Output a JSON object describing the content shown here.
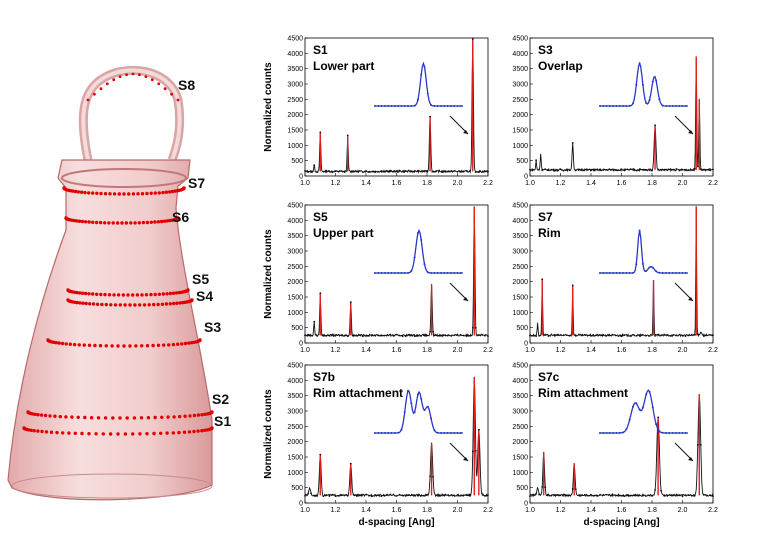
{
  "vessel": {
    "labels": [
      "S8",
      "S7",
      "S6",
      "S5",
      "S4",
      "S3",
      "S2",
      "S1"
    ],
    "colors": {
      "body": "#f2c9c9",
      "edge": "#b85a5a",
      "marker": "#e00000"
    }
  },
  "axes": {
    "ylabel": "Normalized counts",
    "xlabel": "d-spacing [Ang]"
  },
  "chart_data": [
    {
      "type": "line",
      "panel": "S1",
      "title": "S1",
      "subtitle": "Lower part",
      "xlim": [
        1.0,
        2.2
      ],
      "ylim": [
        0,
        4500
      ],
      "xticks": [
        "1.0",
        "1.2",
        "1.4",
        "1.6",
        "1.8",
        "2.0",
        "2.2"
      ],
      "yticks": [
        "0",
        "500",
        "1000",
        "1500",
        "2000",
        "2500",
        "3000",
        "3500",
        "4000",
        "4500"
      ],
      "baseline": 150,
      "peaks": [
        {
          "x": 1.06,
          "y": 350,
          "w": 0.004
        },
        {
          "x": 1.1,
          "y": 1400,
          "w": 0.005
        },
        {
          "x": 1.28,
          "y": 1300,
          "w": 0.005
        },
        {
          "x": 1.82,
          "y": 1950,
          "w": 0.006
        },
        {
          "x": 2.1,
          "y": 4450,
          "w": 0.006
        }
      ],
      "inset": {
        "peaks": [
          {
            "c": 0.55,
            "h": 1.0,
            "w": 0.045
          }
        ]
      }
    },
    {
      "type": "line",
      "panel": "S3",
      "title": "S3",
      "subtitle": "Overlap",
      "xlim": [
        1.0,
        2.2
      ],
      "ylim": [
        0,
        4500
      ],
      "xticks": [
        "1.0",
        "1.2",
        "1.4",
        "1.6",
        "1.8",
        "2.0",
        "2.2"
      ],
      "yticks": [
        "0",
        "500",
        "1000",
        "1500",
        "2000",
        "2500",
        "3000",
        "3500",
        "4000",
        "4500"
      ],
      "baseline": 200,
      "peaks": [
        {
          "x": 1.04,
          "y": 500,
          "w": 0.004
        },
        {
          "x": 1.07,
          "y": 700,
          "w": 0.005
        },
        {
          "x": 1.28,
          "y": 1050,
          "w": 0.006
        },
        {
          "x": 1.82,
          "y": 1650,
          "w": 0.008
        },
        {
          "x": 2.09,
          "y": 3900,
          "w": 0.005
        },
        {
          "x": 2.11,
          "y": 2500,
          "w": 0.005
        }
      ],
      "inset": {
        "peaks": [
          {
            "c": 0.45,
            "h": 1.0,
            "w": 0.045
          },
          {
            "c": 0.62,
            "h": 0.7,
            "w": 0.045
          }
        ]
      }
    },
    {
      "type": "line",
      "panel": "S5",
      "title": "S5",
      "subtitle": "Upper part",
      "xlim": [
        1.0,
        2.2
      ],
      "ylim": [
        0,
        4500
      ],
      "xticks": [
        "1.0",
        "1.2",
        "1.4",
        "1.6",
        "1.8",
        "2.0",
        "2.2"
      ],
      "yticks": [
        "0",
        "500",
        "1000",
        "1500",
        "2000",
        "2500",
        "3000",
        "3500",
        "4000",
        "4500"
      ],
      "baseline": 250,
      "peaks": [
        {
          "x": 1.06,
          "y": 700,
          "w": 0.004
        },
        {
          "x": 1.1,
          "y": 1600,
          "w": 0.005
        },
        {
          "x": 1.3,
          "y": 1350,
          "w": 0.005
        },
        {
          "x": 1.83,
          "y": 1900,
          "w": 0.006
        },
        {
          "x": 2.11,
          "y": 4450,
          "w": 0.006
        }
      ],
      "inset": {
        "peaks": [
          {
            "c": 0.5,
            "h": 1.0,
            "w": 0.05
          }
        ]
      }
    },
    {
      "type": "line",
      "panel": "S7",
      "title": "S7",
      "subtitle": "Rim",
      "xlim": [
        1.0,
        2.2
      ],
      "ylim": [
        0,
        4500
      ],
      "xticks": [
        "1.0",
        "1.2",
        "1.4",
        "1.6",
        "1.8",
        "2.0",
        "2.2"
      ],
      "yticks": [
        "0",
        "500",
        "1000",
        "1500",
        "2000",
        "2500",
        "3000",
        "3500",
        "4000",
        "4500"
      ],
      "baseline": 250,
      "peaks": [
        {
          "x": 1.05,
          "y": 650,
          "w": 0.004
        },
        {
          "x": 1.08,
          "y": 2100,
          "w": 0.004
        },
        {
          "x": 1.28,
          "y": 1900,
          "w": 0.004
        },
        {
          "x": 1.81,
          "y": 2050,
          "w": 0.004
        },
        {
          "x": 2.09,
          "y": 4450,
          "w": 0.004
        },
        {
          "x": 2.12,
          "y": 350,
          "w": 0.01
        }
      ],
      "inset": {
        "peaks": [
          {
            "c": 0.45,
            "h": 1.0,
            "w": 0.03
          },
          {
            "c": 0.58,
            "h": 0.15,
            "w": 0.05
          }
        ]
      }
    },
    {
      "type": "line",
      "panel": "S7b",
      "title": "S7b",
      "subtitle": "Rim  attachment",
      "xlim": [
        1.0,
        2.2
      ],
      "ylim": [
        0,
        4500
      ],
      "xticks": [
        "1.0",
        "1.2",
        "1.4",
        "1.6",
        "1.8",
        "2.0",
        "2.2"
      ],
      "yticks": [
        "0",
        "500",
        "1000",
        "1500",
        "2000",
        "2500",
        "3000",
        "3500",
        "4000",
        "4500"
      ],
      "baseline": 250,
      "peaks": [
        {
          "x": 1.03,
          "y": 500,
          "w": 0.008
        },
        {
          "x": 1.1,
          "y": 1550,
          "w": 0.008
        },
        {
          "x": 1.3,
          "y": 1300,
          "w": 0.008
        },
        {
          "x": 1.83,
          "y": 1950,
          "w": 0.01
        },
        {
          "x": 2.11,
          "y": 4100,
          "w": 0.01
        },
        {
          "x": 2.14,
          "y": 2400,
          "w": 0.01
        }
      ],
      "inset": {
        "peaks": [
          {
            "c": 0.38,
            "h": 1.0,
            "w": 0.05
          },
          {
            "c": 0.5,
            "h": 0.95,
            "w": 0.05
          },
          {
            "c": 0.6,
            "h": 0.6,
            "w": 0.05
          }
        ]
      }
    },
    {
      "type": "line",
      "panel": "S7c",
      "title": "S7c",
      "subtitle": "Rim  attachment",
      "xlim": [
        1.0,
        2.2
      ],
      "ylim": [
        0,
        4500
      ],
      "xticks": [
        "1.0",
        "1.2",
        "1.4",
        "1.6",
        "1.8",
        "2.0",
        "2.2"
      ],
      "yticks": [
        "0",
        "500",
        "1000",
        "1500",
        "2000",
        "2500",
        "3000",
        "3500",
        "4000",
        "4500"
      ],
      "baseline": 250,
      "peaks": [
        {
          "x": 1.05,
          "y": 500,
          "w": 0.008
        },
        {
          "x": 1.09,
          "y": 1650,
          "w": 0.008
        },
        {
          "x": 1.29,
          "y": 1300,
          "w": 0.008
        },
        {
          "x": 1.84,
          "y": 2800,
          "w": 0.012
        },
        {
          "x": 2.11,
          "y": 3550,
          "w": 0.012
        }
      ],
      "inset": {
        "peaks": [
          {
            "c": 0.4,
            "h": 0.7,
            "w": 0.07
          },
          {
            "c": 0.55,
            "h": 1.0,
            "w": 0.07
          }
        ]
      }
    }
  ],
  "colors": {
    "data": "#111111",
    "fit": "#e02020",
    "inset": "#2838c8",
    "arrow": "#111111"
  }
}
